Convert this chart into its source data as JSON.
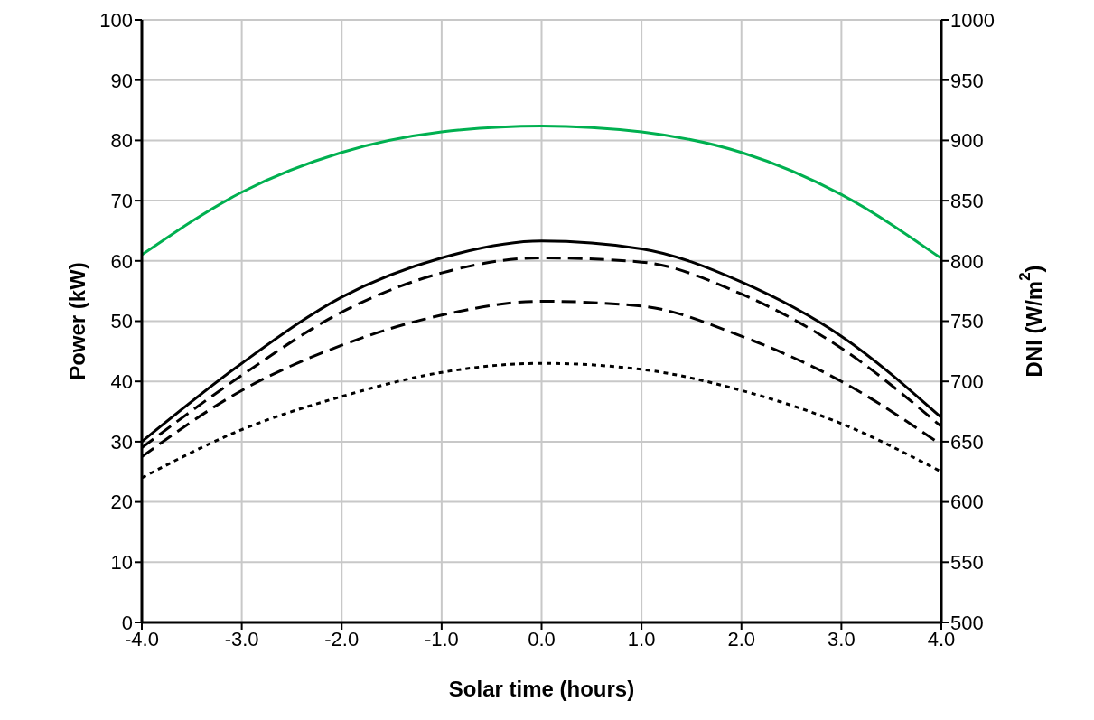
{
  "chart_data": {
    "type": "line",
    "xlabel": "Solar time (hours)",
    "ylabel": "Power (kW)",
    "y2label": "DNI (W/m$^{2}$)",
    "x": [
      -4,
      -3,
      -2,
      -1,
      0,
      1,
      2,
      3,
      4
    ],
    "series": [
      {
        "color": "#00b050",
        "axis": "y2",
        "line_style": "solid",
        "values": [
          805,
          857,
          890,
          907,
          912,
          907,
          890,
          855,
          802
        ]
      },
      {
        "color": "#000000",
        "line_style": "solid",
        "values": [
          30,
          43,
          54,
          60.5,
          63.3,
          62,
          56.5,
          47.5,
          34
        ]
      },
      {
        "color": "#000000",
        "line_style": "dashed",
        "values": [
          29,
          41,
          51.5,
          58,
          60.5,
          59.8,
          54.5,
          45.5,
          32.5
        ]
      },
      {
        "color": "#000000",
        "line_style": "dashed",
        "values": [
          27.5,
          38.5,
          46,
          51,
          53.3,
          52.5,
          47.5,
          40,
          29.5
        ]
      },
      {
        "color": "#000000",
        "line_style": "dotted",
        "values": [
          24,
          32,
          37.5,
          41.5,
          43,
          42,
          38.5,
          33,
          25
        ]
      }
    ],
    "xlim": [
      -4,
      4
    ],
    "xticks": [
      {
        "value": -4,
        "label": "-4.0"
      },
      {
        "value": -3,
        "label": "-3.0"
      },
      {
        "value": -2,
        "label": "-2.0"
      },
      {
        "value": -1,
        "label": "-1.0"
      },
      {
        "value": 0,
        "label": "0.0"
      },
      {
        "value": 1,
        "label": "1.0"
      },
      {
        "value": 2,
        "label": "2.0"
      },
      {
        "value": 3,
        "label": "3.0"
      },
      {
        "value": 4,
        "label": "4.0"
      }
    ],
    "ylim": [
      0,
      100
    ],
    "yticks": [
      0,
      10,
      20,
      30,
      40,
      50,
      60,
      70,
      80,
      90,
      100
    ],
    "y2lim": [
      500,
      1000
    ],
    "y2ticks": [
      500,
      550,
      600,
      650,
      700,
      750,
      800,
      850,
      900,
      950,
      1000
    ],
    "grid": true,
    "legend": false,
    "marker": "none"
  }
}
